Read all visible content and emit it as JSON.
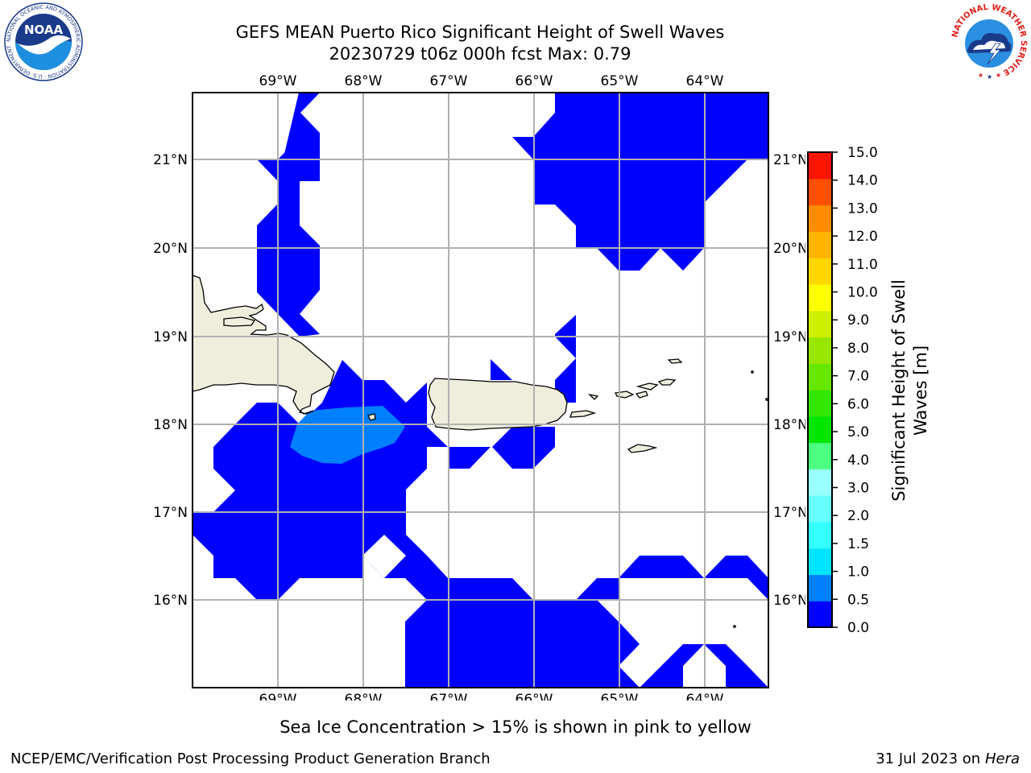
{
  "header": {
    "title_line1": "GEFS MEAN Puerto Rico Significant Height of Swell Waves",
    "title_line2": "20230729 t06z 000h fcst   Max: 0.79"
  },
  "map": {
    "region": "Puerto Rico",
    "lon_labels": [
      "69°W",
      "68°W",
      "67°W",
      "66°W",
      "65°W",
      "64°W"
    ],
    "lat_labels": [
      "16°N",
      "17°N",
      "18°N",
      "19°N",
      "20°N",
      "21°N"
    ],
    "lon_range": [
      -70.0,
      -63.25
    ],
    "lat_range": [
      15.0,
      21.75
    ],
    "gridlines": true,
    "land_color": "#efeedd",
    "ocean_color": "#ffffff",
    "fill_colors": {
      "0.0-0.5": "#0000ff",
      "0.5-1.0": "#0080ff"
    },
    "max_value": 0.79
  },
  "colorbar": {
    "label": "Significant Height of Swell Waves [m]",
    "ticks": [
      "0.0",
      "0.5",
      "1.0",
      "1.5",
      "2.0",
      "3.0",
      "4.0",
      "5.0",
      "6.0",
      "7.0",
      "8.0",
      "9.0",
      "10.0",
      "11.0",
      "12.0",
      "13.0",
      "14.0",
      "15.0"
    ],
    "colors": [
      "#0000ff",
      "#0080ff",
      "#00e5ff",
      "#33ffff",
      "#66ffff",
      "#99ffff",
      "#4cff80",
      "#00e600",
      "#33e600",
      "#66e600",
      "#99e600",
      "#ccf000",
      "#ffff00",
      "#ffd700",
      "#ffb400",
      "#ff8c00",
      "#ff5000",
      "#ff1400"
    ]
  },
  "logos": {
    "noaa_text": "NOAA",
    "noaa_ring_text": "NATIONAL OCEANIC AND ATMOSPHERIC ADMINISTRATION · U.S. DEPARTMENT OF COMMERCE",
    "nws_ring_text": "NATIONAL WEATHER SERVICE"
  },
  "note": "Sea Ice Concentration > 15% is shown in pink to yellow",
  "footer": {
    "left": "NCEP/EMC/Verification Post Processing Product Generation Branch",
    "right_date": "31 Jul 2023 on ",
    "right_host": "Hera"
  }
}
